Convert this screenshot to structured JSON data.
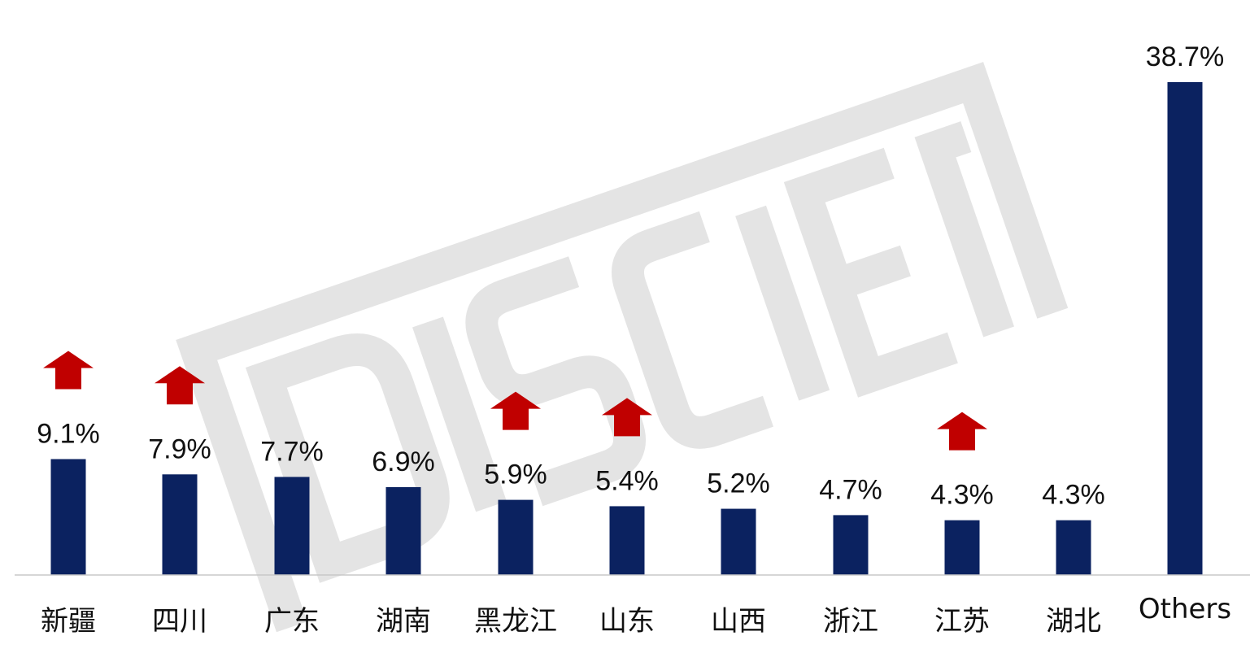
{
  "chart_data": {
    "type": "bar",
    "title": "",
    "xlabel": "",
    "ylabel": "",
    "ylim": [
      0,
      40
    ],
    "grid": false,
    "categories": [
      "新疆",
      "四川",
      "广东",
      "湖南",
      "黑龙江",
      "山东",
      "山西",
      "浙江",
      "江苏",
      "湖北",
      "Others"
    ],
    "values": [
      9.1,
      7.9,
      7.7,
      6.9,
      5.9,
      5.4,
      5.2,
      4.7,
      4.3,
      4.3,
      38.7
    ],
    "value_labels": [
      "9.1%",
      "7.9%",
      "7.7%",
      "6.9%",
      "5.9%",
      "5.4%",
      "5.2%",
      "4.7%",
      "4.3%",
      "4.3%",
      "38.7%"
    ],
    "trend_up": [
      true,
      true,
      false,
      false,
      true,
      true,
      false,
      false,
      true,
      false,
      false
    ],
    "bar_color": "#0b2260",
    "arrow_color": "#c00000",
    "watermark": "DISCIEN"
  }
}
